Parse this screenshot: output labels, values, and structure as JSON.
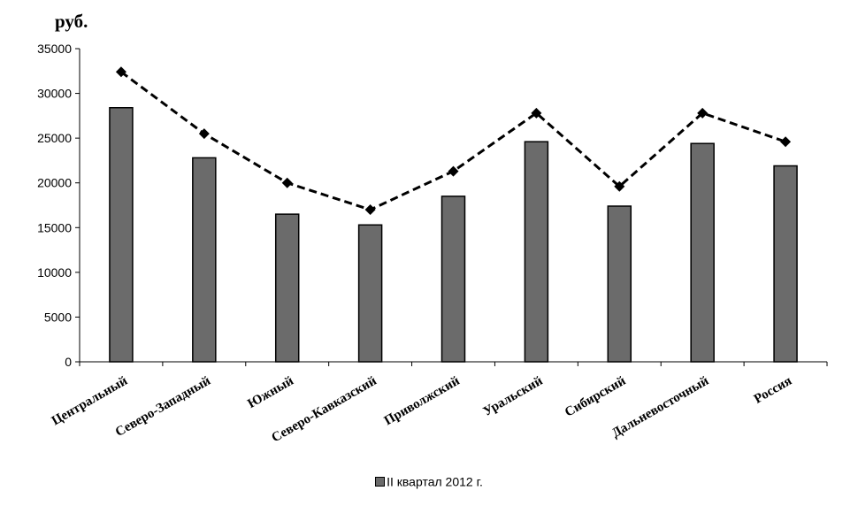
{
  "chart_data": {
    "type": "bar",
    "unit_label": "руб.",
    "categories": [
      "Центральный",
      "Северо-Западный",
      "Южный",
      "Северо-Кавказский",
      "Приволжский",
      "Уральский",
      "Сибирский",
      "Дальневосточный",
      "Россия"
    ],
    "series": [
      {
        "name": "II квартал 2012 г.",
        "kind": "bar",
        "color": "#6b6b6b",
        "values": [
          28400,
          22800,
          16500,
          15300,
          18500,
          24600,
          17400,
          24400,
          21900
        ]
      },
      {
        "kind": "line",
        "style": "dashed",
        "marker": "diamond",
        "color": "#000000",
        "values": [
          32400,
          25500,
          20000,
          17000,
          21300,
          27800,
          19600,
          27800,
          24600
        ]
      }
    ],
    "ylim": [
      0,
      35000
    ],
    "yticks": [
      0,
      5000,
      10000,
      15000,
      20000,
      25000,
      30000,
      35000
    ],
    "grid": false,
    "legend_position": "bottom"
  }
}
